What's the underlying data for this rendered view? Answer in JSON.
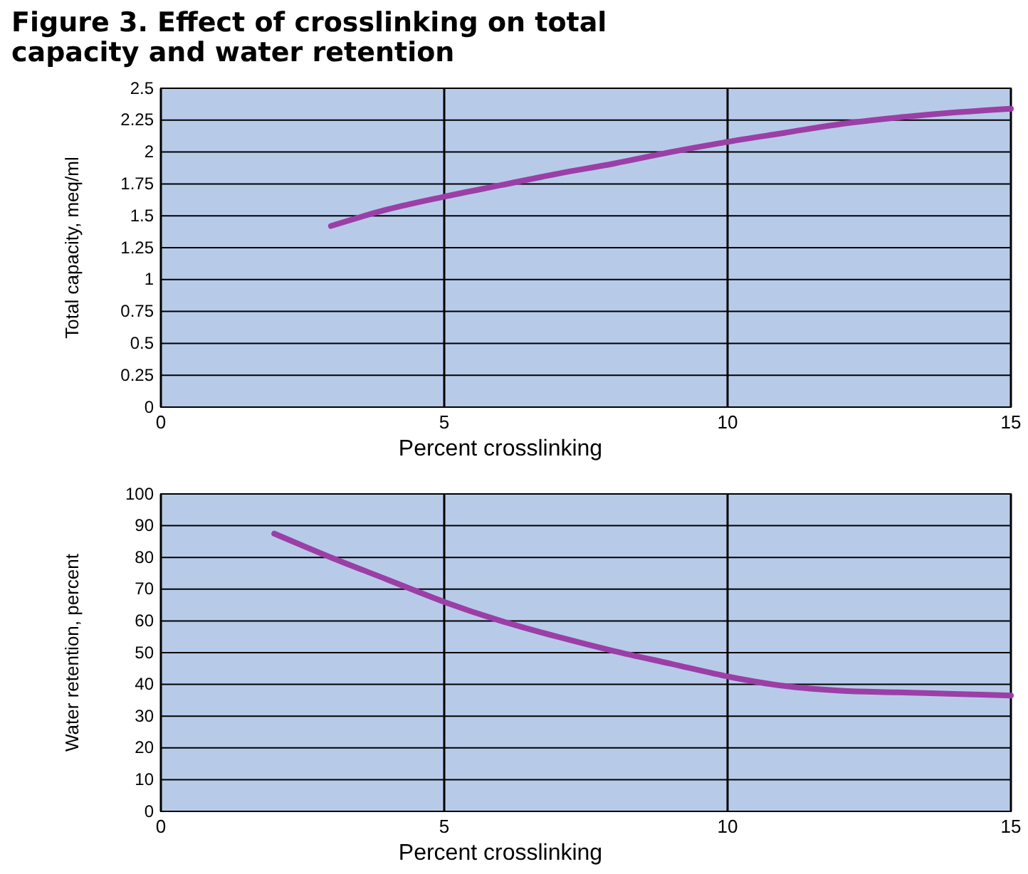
{
  "chart_data": [
    {
      "type": "line",
      "title": "Figure 3. Effect of crosslinking on total capacity and water retention",
      "xlabel": "Percent crosslinking",
      "ylabel": "Total capacity, meq/ml",
      "x": [
        3,
        4,
        5,
        6,
        7,
        8,
        9,
        10,
        11,
        12,
        13,
        14,
        15
      ],
      "series": [
        {
          "color": "#9b3fa6",
          "values": [
            1.42,
            1.55,
            1.65,
            1.74,
            1.83,
            1.91,
            2.0,
            2.08,
            2.15,
            2.22,
            2.27,
            2.31,
            2.34
          ]
        }
      ],
      "xlim": [
        0,
        15
      ],
      "xticks": [
        0,
        5,
        10,
        15
      ],
      "ylim": [
        0,
        2.5
      ],
      "yticks": [
        0,
        0.25,
        0.5,
        0.75,
        1,
        1.25,
        1.5,
        1.75,
        2,
        2.25,
        2.5
      ],
      "grid": true
    },
    {
      "type": "line",
      "xlabel": "Percent crosslinking",
      "ylabel": "Water retention, percent",
      "x": [
        2,
        3,
        4,
        5,
        6,
        7,
        8,
        9,
        10,
        11,
        12,
        13,
        14,
        15
      ],
      "series": [
        {
          "color": "#9b3fa6",
          "values": [
            87.5,
            80,
            73,
            66,
            60,
            55,
            50.5,
            46.5,
            42.5,
            39.5,
            38,
            37.5,
            37,
            36.5
          ]
        }
      ],
      "xlim": [
        0,
        15
      ],
      "xticks": [
        0,
        5,
        10,
        15
      ],
      "ylim": [
        0,
        100
      ],
      "yticks": [
        0,
        10,
        20,
        30,
        40,
        50,
        60,
        70,
        80,
        90,
        100
      ],
      "grid": true
    }
  ]
}
